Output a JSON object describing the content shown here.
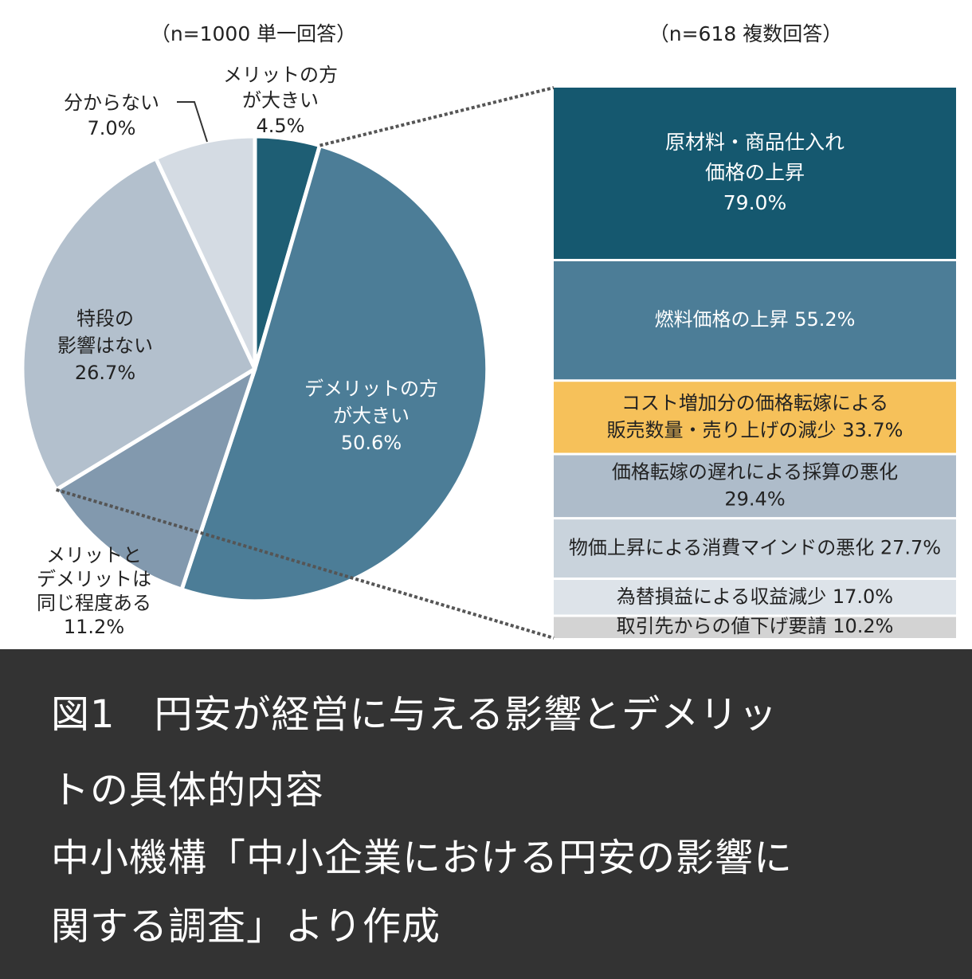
{
  "chart_data": [
    {
      "type": "pie",
      "subtitle": "（n=1000 単一回答）",
      "slices": [
        {
          "lines": [
            "メリットの方",
            "が大きい",
            "4.5%"
          ],
          "value": 4.5,
          "color": "#1e5e74",
          "label_color": "#222222"
        },
        {
          "lines": [
            "デメリットの方",
            "が大きい",
            "50.6%"
          ],
          "value": 50.6,
          "color": "#4c7d97",
          "label_color": "#ffffff"
        },
        {
          "lines": [
            "メリットと",
            "デメリットは",
            "同じ程度ある",
            "11.2%"
          ],
          "value": 11.2,
          "color": "#8299ae",
          "label_color": "#222222"
        },
        {
          "lines": [
            "特段の",
            "影響はない",
            "26.7%"
          ],
          "value": 26.7,
          "color": "#b3c0cd",
          "label_color": "#222222"
        },
        {
          "lines": [
            "分からない",
            "7.0%"
          ],
          "value": 7.0,
          "color": "#d4dbe3",
          "label_color": "#222222"
        }
      ]
    },
    {
      "type": "bar",
      "subtitle": "（n=618 複数回答）",
      "items": [
        {
          "lines": [
            "原材料・商品仕入れ",
            "価格の上昇",
            "79.0%"
          ],
          "value": 79.0,
          "color": "#15586f",
          "text_color": "#ffffff"
        },
        {
          "lines": [
            "燃料価格の上昇 55.2%"
          ],
          "value": 55.2,
          "color": "#4c7d97",
          "text_color": "#ffffff"
        },
        {
          "lines": [
            "コスト増加分の価格転嫁による",
            "販売数量・売り上げの減少 33.7%"
          ],
          "value": 33.7,
          "color": "#f6c15a",
          "text_color": "#222222"
        },
        {
          "lines": [
            "価格転嫁の遅れによる採算の悪化",
            "29.4%"
          ],
          "value": 29.4,
          "color": "#aebcca",
          "text_color": "#222222"
        },
        {
          "lines": [
            "物価上昇による消費マインドの悪化 27.7%"
          ],
          "value": 27.7,
          "color": "#c9d3dc",
          "text_color": "#222222"
        },
        {
          "lines": [
            "為替損益による収益減少 17.0%"
          ],
          "value": 17.0,
          "color": "#dde3e9",
          "text_color": "#222222"
        },
        {
          "lines": [
            "取引先からの値下げ要請 10.2%"
          ],
          "value": 10.2,
          "color": "#d3d3d3",
          "text_color": "#222222"
        }
      ]
    }
  ],
  "caption": {
    "lines": [
      "図1　円安が経営に与える影響とデメリッ",
      "トの具体的内容",
      "中小機構「中小企業における円安の影響に",
      "関する調査」より作成"
    ]
  }
}
